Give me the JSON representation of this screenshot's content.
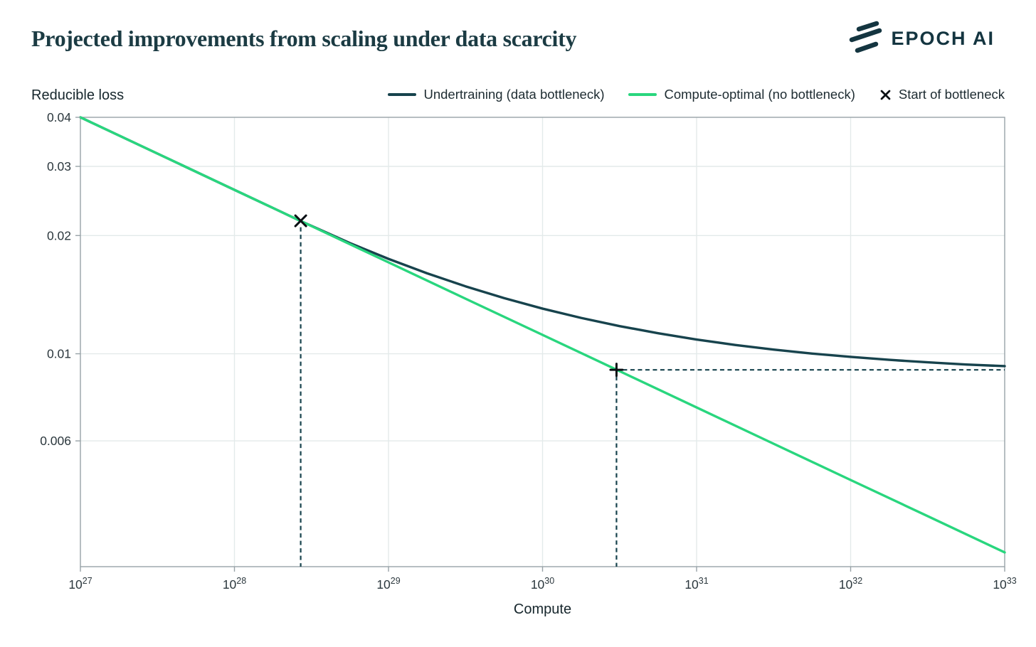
{
  "header": {
    "title": "Projected improvements from scaling under data scarcity",
    "logo_text": "EPOCH AI"
  },
  "colors": {
    "dark_teal": "#17434d",
    "green": "#29d67e",
    "marker_black": "#0b1014",
    "grid": "#e3eaea",
    "axis": "#98a2a7",
    "tick_text": "#2b373d"
  },
  "chart_data": {
    "type": "line",
    "title": "Projected improvements from scaling under data scarcity",
    "xlabel": "Compute",
    "ylabel": "Reducible loss",
    "x_scale": "log",
    "y_scale": "log",
    "x_range_exp": [
      27,
      33
    ],
    "y_range": [
      0.00287,
      0.04
    ],
    "x_ticks_exp": [
      27,
      28,
      29,
      30,
      31,
      32,
      33
    ],
    "y_tick_labels": [
      "0.04",
      "0.03",
      "0.02",
      "0.01",
      "0.006"
    ],
    "legend_position": "top-right",
    "grid": true,
    "series": [
      {
        "name": "Undertraining (data bottleneck)",
        "color": "#17434d",
        "x_exp": [
          27,
          27.5,
          28,
          28.25,
          28.43,
          28.75,
          29,
          29.25,
          29.5,
          29.75,
          30,
          30.25,
          30.5,
          30.75,
          31,
          31.25,
          31.5,
          31.75,
          32,
          32.25,
          32.5,
          32.75,
          33
        ],
        "y": [
          0.04,
          0.03234,
          0.02614,
          0.02351,
          0.02177,
          0.01913,
          0.01744,
          0.01603,
          0.01485,
          0.01386,
          0.01303,
          0.01234,
          0.01176,
          0.01128,
          0.01087,
          0.01053,
          0.01025,
          0.01001,
          0.00982,
          0.00965,
          0.00951,
          0.00939,
          0.0093
        ]
      },
      {
        "name": "Compute-optimal (no bottleneck)",
        "color": "#29d67e",
        "x_exp": [
          27,
          27.5,
          28,
          28.25,
          28.43,
          28.5,
          29,
          29.5,
          30,
          30.48,
          30.5,
          31,
          31.5,
          32,
          32.5,
          33
        ],
        "y": [
          0.04,
          0.03234,
          0.02614,
          0.02351,
          0.02177,
          0.02114,
          0.01709,
          0.01381,
          0.01117,
          0.00911,
          0.00903,
          0.0073,
          0.0059,
          0.00477,
          0.00386,
          0.00312
        ]
      }
    ],
    "markers": [
      {
        "label": "Start of bottleneck",
        "symbol": "x",
        "x_exp": 28.43,
        "y": 0.0218,
        "guides": [
          "vertical"
        ]
      },
      {
        "label": "",
        "symbol": "+",
        "x_exp": 30.48,
        "y": 0.0091,
        "guides": [
          "vertical",
          "horizontal-right"
        ]
      }
    ]
  }
}
